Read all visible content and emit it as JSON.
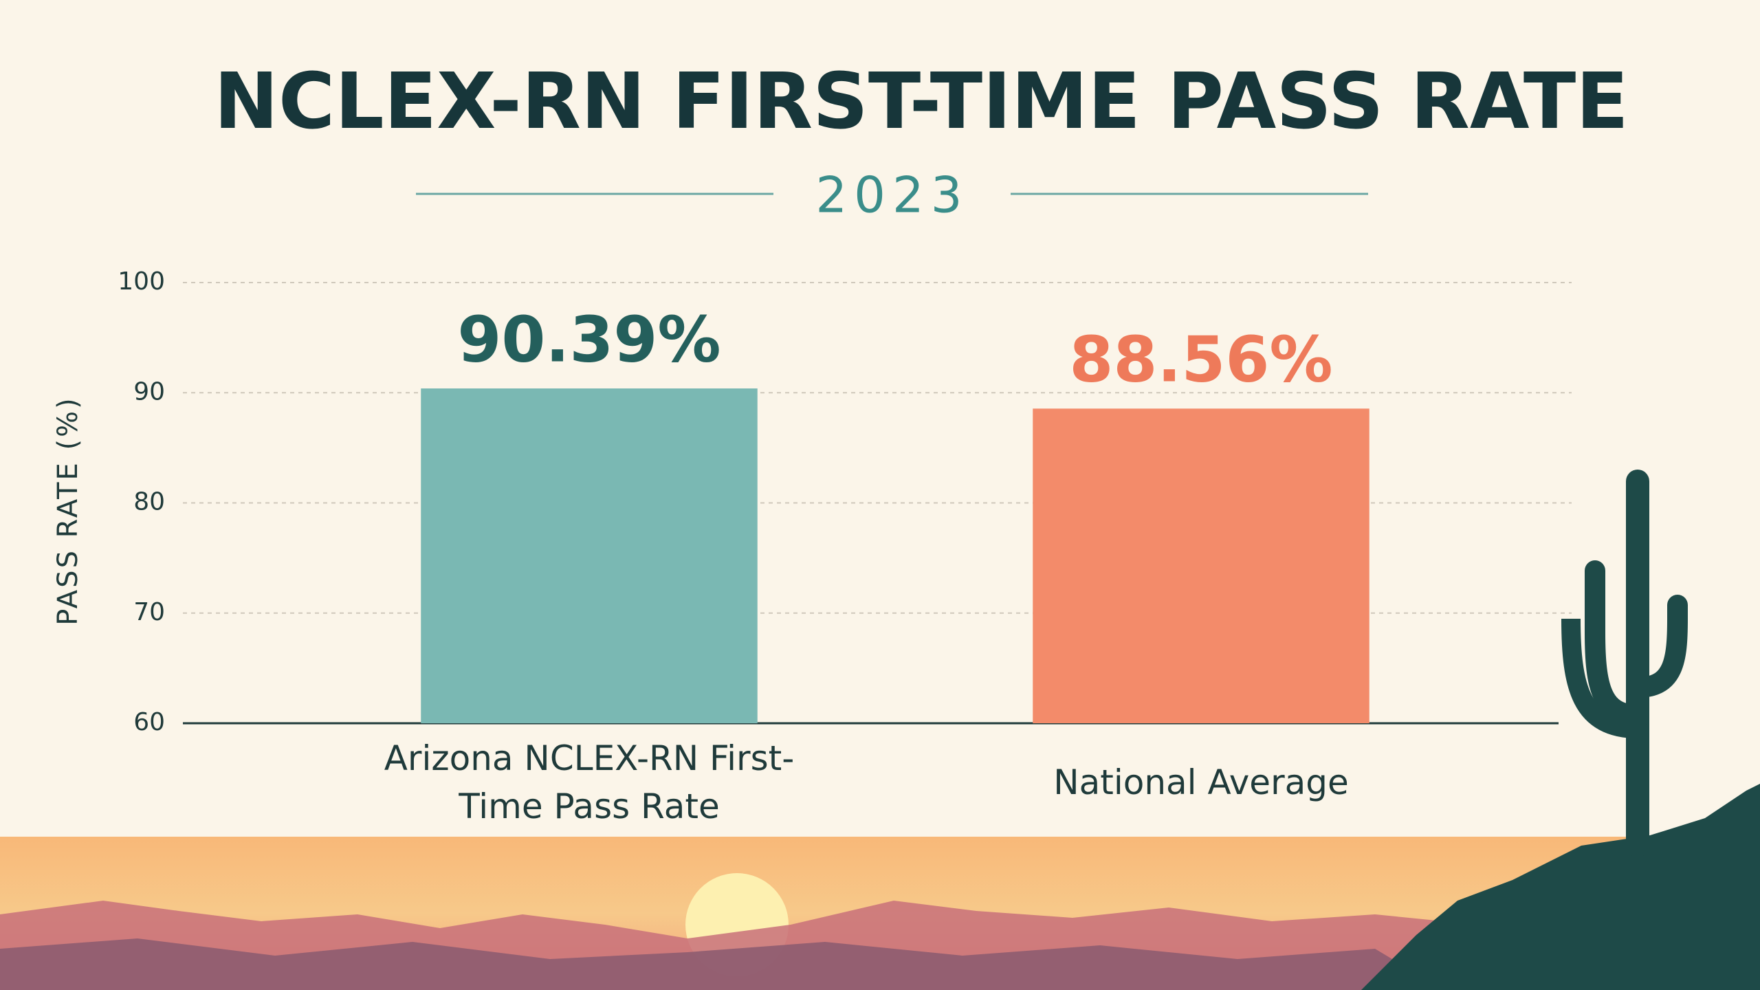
{
  "chart_data": {
    "type": "bar",
    "title": "NCLEX-RN FIRST-TIME PASS RATE",
    "subtitle": "2023",
    "y_label": "PASS RATE (%)",
    "categories": [
      "Arizona NCLEX-RN First-Time Pass Rate",
      "National Average"
    ],
    "values": [
      90.39,
      88.56
    ],
    "value_labels": [
      "90.39%",
      "88.56%"
    ],
    "colors": [
      "#7ab8b3",
      "#f38b6a"
    ],
    "value_label_colors": [
      "#245f5c",
      "#ee7a5a"
    ],
    "ylim": [
      60,
      100
    ],
    "yticks": [
      60,
      70,
      80,
      90,
      100
    ],
    "grid": true
  }
}
